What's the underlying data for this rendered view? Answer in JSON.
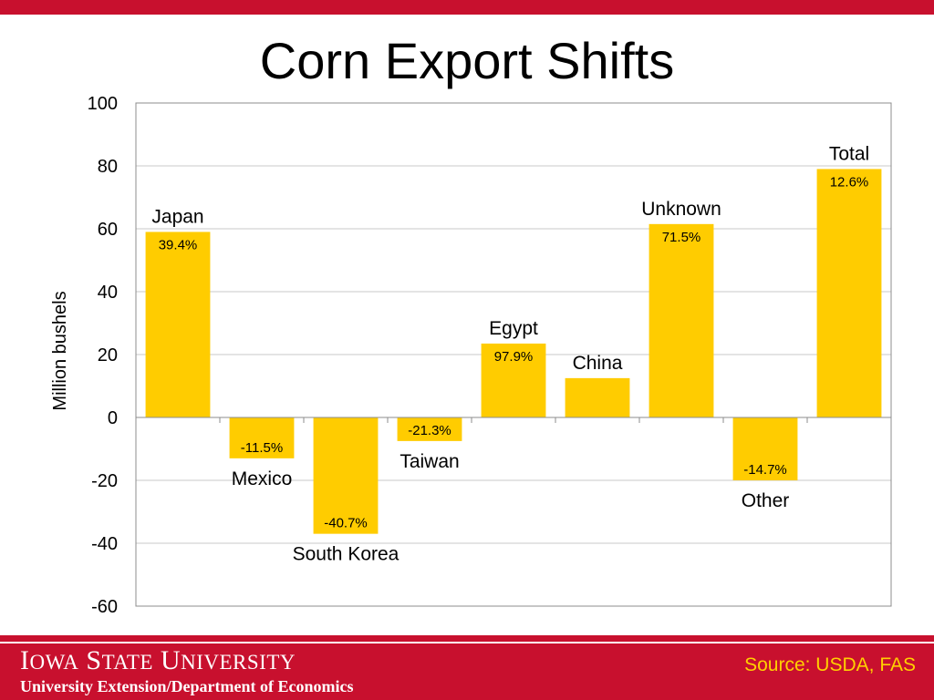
{
  "slide": {
    "title": "Corn Export Shifts",
    "source": "Source: USDA, FAS"
  },
  "footer": {
    "university_name": "Iowa State University",
    "university_words": [
      {
        "initial": "I",
        "rest": "OWA"
      },
      {
        "initial": "S",
        "rest": "TATE"
      },
      {
        "initial": "U",
        "rest": "NIVERSITY"
      }
    ],
    "department": "University Extension/Department of Economics"
  },
  "colors": {
    "brand_red": "#c8102e",
    "bar_fill": "#ffcc00",
    "source_text": "#ffd000",
    "gridline": "#c8c8c8"
  },
  "chart_data": {
    "type": "bar",
    "title": "",
    "xlabel": "",
    "ylabel": "Million bushels",
    "ylim": [
      -60,
      100
    ],
    "yticks": [
      100,
      80,
      60,
      40,
      20,
      0,
      -20,
      -40,
      -60
    ],
    "grid": true,
    "legend": "none",
    "categories": [
      "Japan",
      "Mexico",
      "South Korea",
      "Taiwan",
      "Egypt",
      "China",
      "Unknown",
      "Other",
      "Total"
    ],
    "values": [
      59,
      -13,
      -37,
      -7.5,
      23.5,
      12.5,
      61.5,
      -20,
      79
    ],
    "percent_labels": [
      "39.4%",
      "-11.5%",
      "-40.7%",
      "-21.3%",
      "97.9%",
      "",
      "71.5%",
      "-14.7%",
      "12.6%"
    ]
  }
}
